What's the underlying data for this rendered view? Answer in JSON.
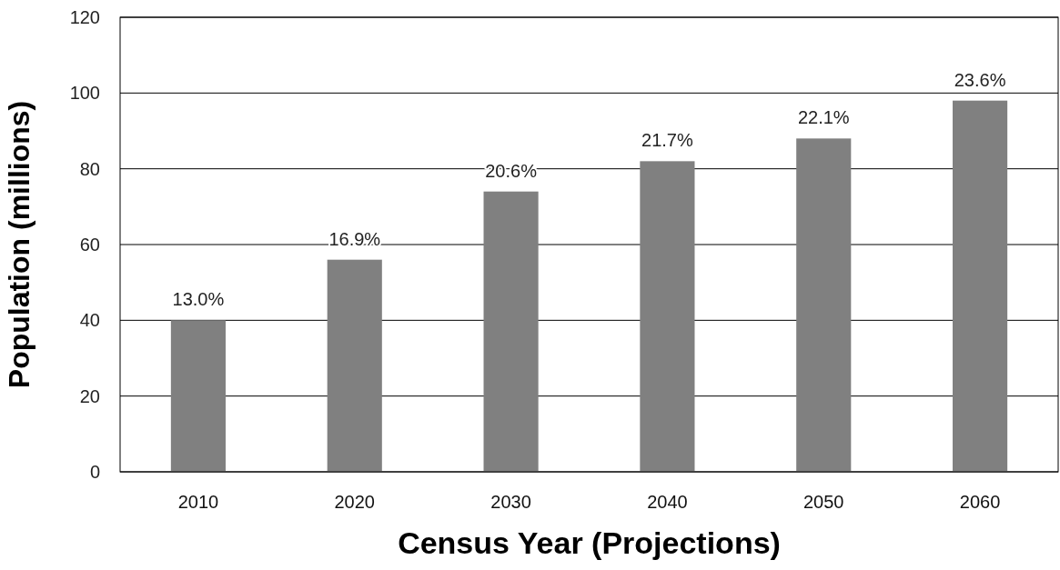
{
  "chart_data": {
    "type": "bar",
    "xlabel": "Census Year (Projections)",
    "ylabel": "Population (millions)",
    "categories": [
      "2010",
      "2020",
      "2030",
      "2040",
      "2050",
      "2060"
    ],
    "values": [
      40,
      56,
      74,
      82,
      88,
      98
    ],
    "annotations": [
      {
        "text": "13.0%",
        "x": "2010",
        "y": 40
      },
      {
        "text": "16.9%",
        "x": "2020",
        "y": 56
      },
      {
        "text": "20.6%",
        "x": "2030",
        "y": 74
      },
      {
        "text": "21.7%",
        "x": "2040",
        "y": 82
      },
      {
        "text": "22.1%",
        "x": "2050",
        "y": 88
      },
      {
        "text": "23.6%",
        "x": "2060",
        "y": 98
      }
    ],
    "color": "#808080",
    "ylim": [
      0,
      120
    ],
    "yticks": [
      0,
      20,
      40,
      60,
      80,
      100,
      120
    ],
    "grid": "y"
  }
}
